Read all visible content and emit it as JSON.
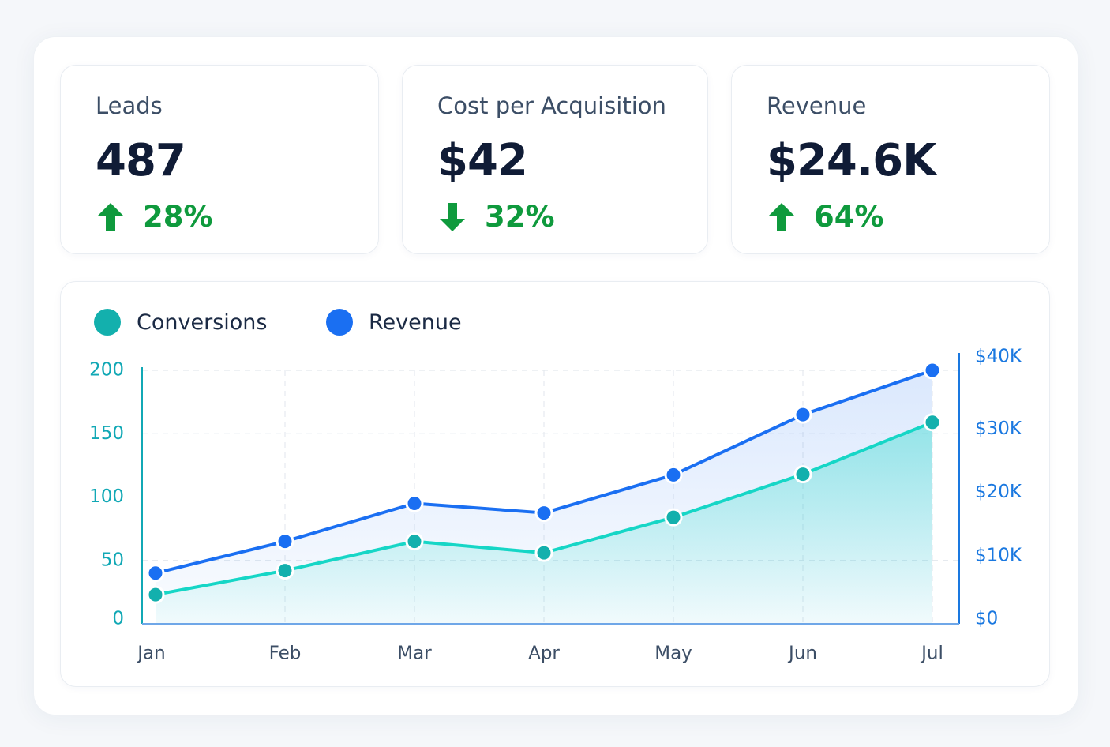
{
  "kpis": [
    {
      "label": "Leads",
      "value": "487",
      "change": "28%",
      "direction": "up"
    },
    {
      "label": "Cost per Acquisition",
      "value": "$42",
      "change": "32%",
      "direction": "down"
    },
    {
      "label": "Revenue",
      "value": "$24.6K",
      "change": "64%",
      "direction": "up"
    }
  ],
  "colors": {
    "conversions": "#16d6c6",
    "conversions_point": "#13b0ad",
    "revenue": "#1a6ff2",
    "positive": "#0f9a3d",
    "left_axis": "#11a8b5",
    "right_axis": "#1a78e0"
  },
  "chart_data": {
    "type": "line",
    "categories": [
      "Jan",
      "Feb",
      "Mar",
      "Apr",
      "May",
      "Jun",
      "Jul"
    ],
    "series": [
      {
        "name": "Conversions",
        "axis": "left",
        "values": [
          23,
          42,
          65,
          56,
          84,
          118,
          159
        ]
      },
      {
        "name": "Revenue",
        "axis": "right",
        "values": [
          8000,
          13000,
          19000,
          17500,
          23500,
          33000,
          40000
        ]
      }
    ],
    "y_left": {
      "ticks": [
        "0",
        "50",
        "100",
        "150",
        "200"
      ],
      "min": 0,
      "max": 200
    },
    "y_right": {
      "ticks": [
        "$0",
        "$10K",
        "$20K",
        "$30K",
        "$40K"
      ],
      "min": 0,
      "max": 40000
    },
    "area_fill": true,
    "grid": true,
    "legend": "top-left"
  }
}
